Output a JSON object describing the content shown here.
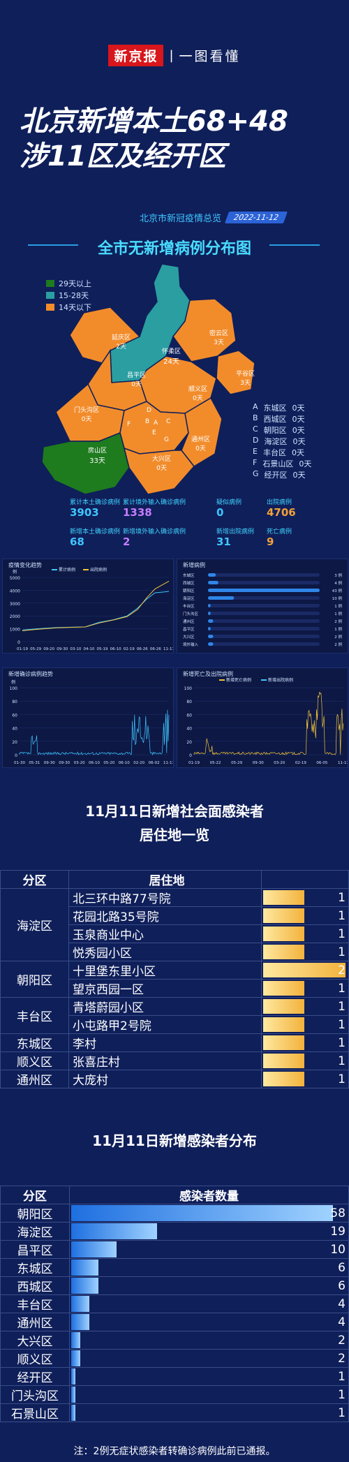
{
  "brand": {
    "name": "新京报",
    "sep": "|",
    "sub": "一图看懂"
  },
  "headline": {
    "line1": "北京新增本土68+48",
    "line2": "涉11区及经开区"
  },
  "source": {
    "label": "北京市新冠疫情总览",
    "date": "2022-11-12"
  },
  "map": {
    "title": "全市无新增病例分布图",
    "legend": [
      {
        "label": "29天以上",
        "color": "#1e7b1e"
      },
      {
        "label": "15-28天",
        "color": "#2a9ea0"
      },
      {
        "label": "14天以下",
        "color": "#f28c2b"
      }
    ],
    "regions": [
      {
        "name": "延庆区",
        "days": "2天"
      },
      {
        "name": "怀柔区",
        "days": "24天"
      },
      {
        "name": "密云区",
        "days": "3天"
      },
      {
        "name": "昌平区",
        "days": "0天"
      },
      {
        "name": "顺义区",
        "days": "0天"
      },
      {
        "name": "平谷区",
        "days": "3天"
      },
      {
        "name": "门头沟区",
        "days": "0天"
      },
      {
        "name": "房山区",
        "days": "33天"
      },
      {
        "name": "大兴区",
        "days": "0天"
      },
      {
        "name": "通州区",
        "days": "0天"
      }
    ],
    "key": [
      {
        "letter": "A",
        "name": "东城区",
        "days": "0天"
      },
      {
        "letter": "B",
        "name": "西城区",
        "days": "0天"
      },
      {
        "letter": "C",
        "name": "朝阳区",
        "days": "0天"
      },
      {
        "letter": "D",
        "name": "海淀区",
        "days": "0天"
      },
      {
        "letter": "E",
        "name": "丰台区",
        "days": "0天"
      },
      {
        "letter": "F",
        "name": "石景山区",
        "days": "0天"
      },
      {
        "letter": "G",
        "name": "经开区",
        "days": "0天"
      }
    ]
  },
  "stats": [
    {
      "label": "累计本土确诊病例",
      "value": "3903",
      "color": "#3ec6ff"
    },
    {
      "label": "累计境外输入确诊病例",
      "value": "1338",
      "color": "#c77dff"
    },
    {
      "label": "疑似病例",
      "value": "0",
      "color": "#3ec6ff"
    },
    {
      "label": "出院病例",
      "value": "4706",
      "color": "#f2a13a"
    },
    {
      "label": "新增本土确诊病例",
      "value": "68",
      "color": "#3ec6ff"
    },
    {
      "label": "新增境外输入确诊病例",
      "value": "2",
      "color": "#c77dff"
    },
    {
      "label": "新增出院病例",
      "value": "31",
      "color": "#3ec6ff"
    },
    {
      "label": "死亡病例",
      "value": "9",
      "color": "#f2a13a"
    }
  ],
  "chart_data": [
    {
      "type": "line",
      "title": "疫情变化趋势",
      "ylabel": "例",
      "series": [
        {
          "name": "累计病例"
        },
        {
          "name": "出院病例"
        }
      ],
      "x": [
        "01-19",
        "05-29",
        "09-20",
        "09-30",
        "03-10",
        "04-10",
        "05-19",
        "06-10",
        "02-19",
        "06-26",
        "06-26",
        "11-11"
      ],
      "ylim": [
        0,
        5000
      ],
      "yticks": [
        0,
        1000,
        2000,
        3000,
        4000,
        5000
      ]
    },
    {
      "type": "bar",
      "title": "新增病例",
      "categories": [
        "东城区",
        "西城区",
        "朝阳区",
        "海淀区",
        "丰台区",
        "门头沟区",
        "通州区",
        "昌平区",
        "大兴区",
        "境外输入"
      ],
      "values": [
        3,
        4,
        43,
        10,
        1,
        1,
        2,
        1,
        2,
        2
      ],
      "value_labels": [
        "3 例",
        "4 例",
        "43 例",
        "10 例",
        "1 例",
        "1 例",
        "2 例",
        "1 例",
        "2 例",
        "2 例"
      ]
    },
    {
      "type": "line",
      "title": "新增确诊病例趋势",
      "ylabel": "例",
      "ylim": [
        0,
        100
      ],
      "yticks": [
        0,
        20,
        40,
        60,
        80,
        100
      ],
      "x": [
        "01-30",
        "05-31",
        "09-30",
        "09-30",
        "03-20",
        "06-10",
        "05-20",
        "06-10",
        "02-20",
        "06-02",
        "11-11"
      ]
    },
    {
      "type": "line",
      "title": "新增死亡及出院病例",
      "series": [
        {
          "name": "新增死亡病例"
        },
        {
          "name": "新增出院病例"
        }
      ],
      "ylim": [
        0,
        100
      ],
      "yticks": [
        0,
        20,
        40,
        60,
        80,
        100
      ],
      "x": [
        "01-19",
        "05-22",
        "05-29",
        "09-30",
        "03-20",
        "02-19",
        "06-05",
        "11-11"
      ]
    }
  ],
  "residence": {
    "title_line1": "11月11日新增社会面感染者",
    "title_line2": "居住地一览",
    "headers": [
      "分区",
      "居住地",
      ""
    ],
    "max": 2,
    "rows": [
      {
        "district": "海淀区",
        "address": "北三环中路77号院",
        "count": 1
      },
      {
        "district": "",
        "address": "花园北路35号院",
        "count": 1
      },
      {
        "district": "",
        "address": "玉泉商业中心",
        "count": 1
      },
      {
        "district": "",
        "address": "悦秀园小区",
        "count": 1
      },
      {
        "district": "朝阳区",
        "address": "十里堡东里小区",
        "count": 2
      },
      {
        "district": "",
        "address": "望京西园一区",
        "count": 1
      },
      {
        "district": "丰台区",
        "address": "青塔蔚园小区",
        "count": 1
      },
      {
        "district": "",
        "address": "小屯路甲2号院",
        "count": 1
      },
      {
        "district": "东城区",
        "address": "李村",
        "count": 1
      },
      {
        "district": "顺义区",
        "address": "张喜庄村",
        "count": 1
      },
      {
        "district": "通州区",
        "address": "大庞村",
        "count": 1
      }
    ]
  },
  "distribution": {
    "title": "11月11日新增感染者分布",
    "headers": [
      "分区",
      "感染者数量"
    ],
    "max": 58,
    "rows": [
      {
        "district": "朝阳区",
        "count": 58
      },
      {
        "district": "海淀区",
        "count": 19
      },
      {
        "district": "昌平区",
        "count": 10
      },
      {
        "district": "东城区",
        "count": 6
      },
      {
        "district": "西城区",
        "count": 6
      },
      {
        "district": "丰台区",
        "count": 4
      },
      {
        "district": "通州区",
        "count": 4
      },
      {
        "district": "大兴区",
        "count": 2
      },
      {
        "district": "顺义区",
        "count": 2
      },
      {
        "district": "经开区",
        "count": 1
      },
      {
        "district": "门头沟区",
        "count": 1
      },
      {
        "district": "石景山区",
        "count": 1
      }
    ]
  },
  "note": "注：2例无症状感染者转确诊病例此前已通报。"
}
